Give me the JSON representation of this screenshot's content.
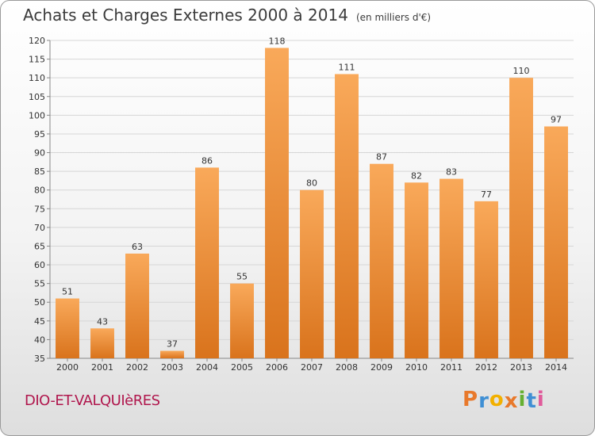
{
  "header": {
    "title": "Achats et Charges Externes 2000 à 2014",
    "unit": "(en milliers d'€)"
  },
  "footer": {
    "commune": "DIO-ET-VALQUIèRES",
    "logo_letters": [
      "P",
      "r",
      "o",
      "x",
      "i",
      "t",
      "i"
    ],
    "logo_colors": [
      "#e8792b",
      "#3f8fd4",
      "#f2b000",
      "#e8792b",
      "#66b032",
      "#3f8fd4",
      "#e05b9b"
    ]
  },
  "chart_data": {
    "type": "bar",
    "title": "Achats et Charges Externes 2000 à 2014",
    "subtitle": "(en milliers d'€)",
    "categories": [
      "2000",
      "2001",
      "2002",
      "2003",
      "2004",
      "2005",
      "2006",
      "2007",
      "2008",
      "2009",
      "2010",
      "2011",
      "2012",
      "2013",
      "2014"
    ],
    "values": [
      51,
      43,
      63,
      37,
      86,
      55,
      118,
      80,
      111,
      87,
      82,
      83,
      77,
      110,
      97
    ],
    "ylim": [
      35,
      120
    ],
    "yticks": [
      35,
      40,
      45,
      50,
      55,
      60,
      65,
      70,
      75,
      80,
      85,
      90,
      95,
      100,
      105,
      110,
      115,
      120
    ],
    "grid": true,
    "bar_color": "#f0913a"
  }
}
